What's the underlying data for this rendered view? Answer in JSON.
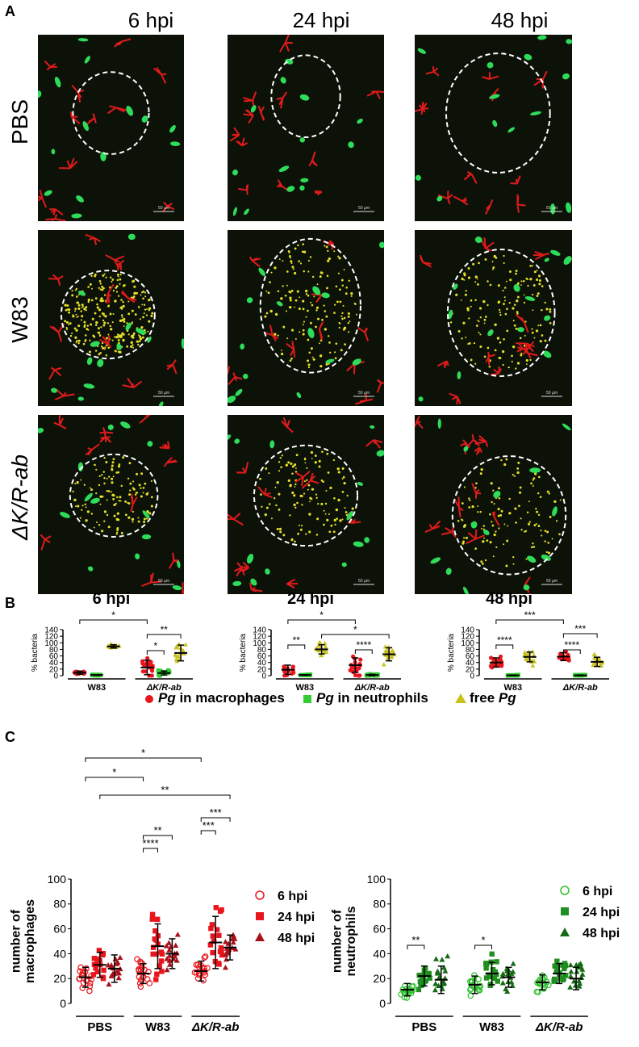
{
  "panel_labels": {
    "a": "A",
    "b": "B",
    "c": "C"
  },
  "panel_a": {
    "columns": [
      "6 hpi",
      "24 hpi",
      "48 hpi"
    ],
    "rows": [
      "PBS",
      "W83",
      "ΔK/R-ab"
    ],
    "scale_bar_label": "50 µm"
  },
  "panel_b": {
    "ylabel": "% bacteria",
    "legend": [
      {
        "prefix": "Pg",
        "suffix": " in macrophages",
        "color": "#e8161c",
        "marker": "circle"
      },
      {
        "prefix": "Pg",
        "suffix": " in neutrophils",
        "color": "#33cc33",
        "marker": "square"
      },
      {
        "prefix": "free ",
        "suffix": "Pg",
        "color": "#c8c21e",
        "marker": "triangle"
      }
    ]
  },
  "panel_c": {
    "left_ylabel_1": "number of",
    "left_ylabel_2": "macrophages",
    "right_ylabel_1": "number of",
    "right_ylabel_2": "neutrophils",
    "legend_labels": [
      "6 hpi",
      "24 hpi",
      "48 hpi"
    ]
  },
  "chart_data": [
    {
      "type": "scatter",
      "title": "6 hpi",
      "ylabel": "% bacteria",
      "ylim": [
        0,
        140
      ],
      "yticks": [
        0,
        20,
        40,
        60,
        80,
        100,
        120,
        140
      ],
      "groups": [
        "W83",
        "ΔK/R-ab"
      ],
      "series": [
        {
          "name": "Pg in macrophages",
          "means": [
            9,
            25
          ],
          "sd": [
            5,
            22
          ]
        },
        {
          "name": "Pg in neutrophils",
          "means": [
            2,
            8
          ],
          "sd": [
            1,
            6
          ]
        },
        {
          "name": "free Pg",
          "means": [
            89,
            69
          ],
          "sd": [
            5,
            24
          ]
        }
      ],
      "significance": [
        {
          "label": "*",
          "between": [
            "W83 Pg in macrophages",
            "ΔK/R-ab Pg in macrophages"
          ]
        },
        {
          "label": "**",
          "between": [
            "ΔK/R-ab Pg in macrophages",
            "ΔK/R-ab free Pg"
          ]
        },
        {
          "label": "*",
          "between": [
            "ΔK/R-ab Pg in macrophages",
            "ΔK/R-ab Pg in neutrophils"
          ]
        }
      ]
    },
    {
      "type": "scatter",
      "title": "24 hpi",
      "ylabel": "% bacteria",
      "ylim": [
        0,
        140
      ],
      "yticks": [
        0,
        20,
        40,
        60,
        80,
        100,
        120,
        140
      ],
      "groups": [
        "W83",
        "ΔK/R-ab"
      ],
      "series": [
        {
          "name": "Pg in macrophages",
          "means": [
            18,
            32
          ],
          "sd": [
            14,
            22
          ]
        },
        {
          "name": "Pg in neutrophils",
          "means": [
            2,
            2
          ],
          "sd": [
            1,
            2
          ]
        },
        {
          "name": "free Pg",
          "means": [
            80,
            65
          ],
          "sd": [
            14,
            20
          ]
        }
      ],
      "significance": [
        {
          "label": "*",
          "between": [
            "W83 Pg in macrophages",
            "ΔK/R-ab Pg in macrophages"
          ]
        },
        {
          "label": "*",
          "between": [
            "W83 free Pg",
            "ΔK/R-ab free Pg"
          ]
        },
        {
          "label": "**",
          "between": [
            "W83 Pg in macrophages",
            "W83 Pg in neutrophils"
          ]
        },
        {
          "label": "****",
          "between": [
            "ΔK/R-ab Pg in macrophages",
            "ΔK/R-ab Pg in neutrophils"
          ]
        }
      ]
    },
    {
      "type": "scatter",
      "title": "48 hpi",
      "ylabel": "% bacteria",
      "ylim": [
        0,
        140
      ],
      "yticks": [
        0,
        20,
        40,
        60,
        80,
        100,
        120,
        140
      ],
      "groups": [
        "W83",
        "ΔK/R-ab"
      ],
      "series": [
        {
          "name": "Pg in macrophages",
          "means": [
            40,
            58
          ],
          "sd": [
            14,
            12
          ]
        },
        {
          "name": "Pg in neutrophils",
          "means": [
            1,
            1
          ],
          "sd": [
            1,
            1
          ]
        },
        {
          "name": "free Pg",
          "means": [
            57,
            42
          ],
          "sd": [
            15,
            14
          ]
        }
      ],
      "significance": [
        {
          "label": "***",
          "between": [
            "W83 Pg in macrophages",
            "ΔK/R-ab Pg in macrophages"
          ]
        },
        {
          "label": "***",
          "between": [
            "ΔK/R-ab Pg in macrophages",
            "ΔK/R-ab free Pg"
          ]
        },
        {
          "label": "****",
          "between": [
            "W83 Pg in macrophages",
            "W83 Pg in neutrophils"
          ]
        },
        {
          "label": "****",
          "between": [
            "ΔK/R-ab Pg in macrophages",
            "ΔK/R-ab Pg in neutrophils"
          ]
        }
      ]
    },
    {
      "type": "scatter",
      "ylabel": "number of macrophages",
      "ylim": [
        0,
        100
      ],
      "yticks": [
        0,
        20,
        40,
        60,
        80,
        100
      ],
      "groups": [
        "PBS",
        "W83",
        "ΔK/R-ab"
      ],
      "series": [
        {
          "name": "6 hpi",
          "means": [
            21,
            24,
            26
          ],
          "sd": [
            8,
            8,
            8
          ]
        },
        {
          "name": "24 hpi",
          "means": [
            31,
            46,
            49
          ],
          "sd": [
            10,
            18,
            21
          ]
        },
        {
          "name": "48 hpi",
          "means": [
            28,
            40,
            45
          ],
          "sd": [
            11,
            12,
            10
          ]
        }
      ],
      "significance": [
        {
          "label": "*",
          "between": [
            "PBS 6 hpi",
            "ΔK/R-ab 6 hpi"
          ]
        },
        {
          "label": "*",
          "between": [
            "PBS 6 hpi",
            "W83 6 hpi"
          ]
        },
        {
          "label": "**",
          "between": [
            "PBS 24 hpi",
            "ΔK/R-ab 48 hpi"
          ]
        },
        {
          "label": "**",
          "between": [
            "W83 6 hpi",
            "W83 48 hpi"
          ]
        },
        {
          "label": "****",
          "between": [
            "W83 6 hpi",
            "W83 24 hpi"
          ]
        },
        {
          "label": "***",
          "between": [
            "ΔK/R-ab 6 hpi",
            "ΔK/R-ab 48 hpi"
          ]
        },
        {
          "label": "***",
          "between": [
            "ΔK/R-ab 6 hpi",
            "ΔK/R-ab 24 hpi"
          ]
        }
      ]
    },
    {
      "type": "scatter",
      "ylabel": "number of neutrophils",
      "ylim": [
        0,
        100
      ],
      "yticks": [
        0,
        20,
        40,
        60,
        80,
        100
      ],
      "groups": [
        "PBS",
        "W83",
        "ΔK/R-ab"
      ],
      "series": [
        {
          "name": "6 hpi",
          "means": [
            11,
            15,
            17
          ],
          "sd": [
            5,
            7,
            6
          ]
        },
        {
          "name": "24 hpi",
          "means": [
            22,
            24,
            24
          ],
          "sd": [
            8,
            9,
            8
          ]
        },
        {
          "name": "48 hpi",
          "means": [
            19,
            21,
            20
          ],
          "sd": [
            11,
            8,
            9
          ]
        }
      ],
      "significance": [
        {
          "label": "**",
          "between": [
            "PBS 6 hpi",
            "PBS 24 hpi"
          ]
        },
        {
          "label": "*",
          "between": [
            "W83 6 hpi",
            "W83 24 hpi"
          ]
        }
      ]
    }
  ]
}
